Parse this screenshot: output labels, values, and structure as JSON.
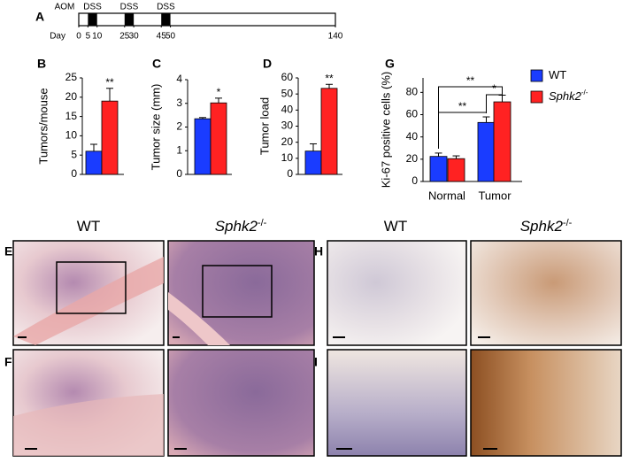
{
  "panel_labels": [
    "A",
    "B",
    "C",
    "D",
    "G",
    "E",
    "F",
    "H",
    "I"
  ],
  "timeline": {
    "label": "AOM",
    "axis_label": "Day",
    "xlim": [
      0,
      140
    ],
    "xticks": [
      0,
      5,
      10,
      25,
      30,
      45,
      50,
      140
    ],
    "treatments": [
      {
        "label": "DSS",
        "start": 5,
        "end": 10
      },
      {
        "label": "DSS",
        "start": 25,
        "end": 30
      },
      {
        "label": "DSS",
        "start": 45,
        "end": 50
      }
    ]
  },
  "chart_data": [
    {
      "type": "bar",
      "ylabel": "Tumors/mouse",
      "categories": [
        null,
        null
      ],
      "values": [
        6,
        19
      ],
      "errors": [
        1.8,
        3.3
      ],
      "colors": [
        "#1a3cff",
        "#ff2222"
      ],
      "ylim": [
        0,
        25
      ],
      "yticks": [
        0,
        5,
        10,
        15,
        20,
        25
      ],
      "annotation": "**"
    },
    {
      "type": "bar",
      "ylabel": "Tumor size (mm)",
      "categories": [
        null,
        null
      ],
      "values": [
        2.35,
        3.02
      ],
      "errors": [
        0.05,
        0.2
      ],
      "colors": [
        "#1a3cff",
        "#ff2222"
      ],
      "ylim": [
        0,
        4
      ],
      "yticks": [
        0,
        1,
        2,
        3,
        4
      ],
      "annotation": "*"
    },
    {
      "type": "bar",
      "ylabel": "Tumor load",
      "categories": [
        null,
        null
      ],
      "values": [
        14.5,
        53.5
      ],
      "errors": [
        4.5,
        2.5
      ],
      "colors": [
        "#1a3cff",
        "#ff2222"
      ],
      "ylim": [
        0,
        60
      ],
      "yticks": [
        0,
        10,
        20,
        30,
        40,
        50,
        60
      ],
      "annotation": "**"
    },
    {
      "type": "grouped_bar",
      "ylabel": "Ki-67 positive cells (%)",
      "categories": [
        "Normal",
        "Tumor"
      ],
      "series": [
        {
          "name": "WT",
          "color": "#1a3cff",
          "values": [
            22.5,
            53
          ],
          "errors": [
            3,
            5
          ]
        },
        {
          "name": "Sphk2",
          "name_superscript": "-/-",
          "color": "#ff2222",
          "values": [
            20.5,
            71.5
          ],
          "errors": [
            2.5,
            6
          ]
        }
      ],
      "ylim": [
        0,
        93
      ],
      "yticks": [
        0,
        20,
        40,
        60,
        80
      ],
      "annotations": [
        "**",
        "**",
        "*"
      ]
    }
  ],
  "image_headers": [
    {
      "text": "WT"
    },
    {
      "text": "Sphk2",
      "superscript": "-/-"
    },
    {
      "text": "WT"
    },
    {
      "text": "Sphk2",
      "superscript": "-/-"
    }
  ]
}
